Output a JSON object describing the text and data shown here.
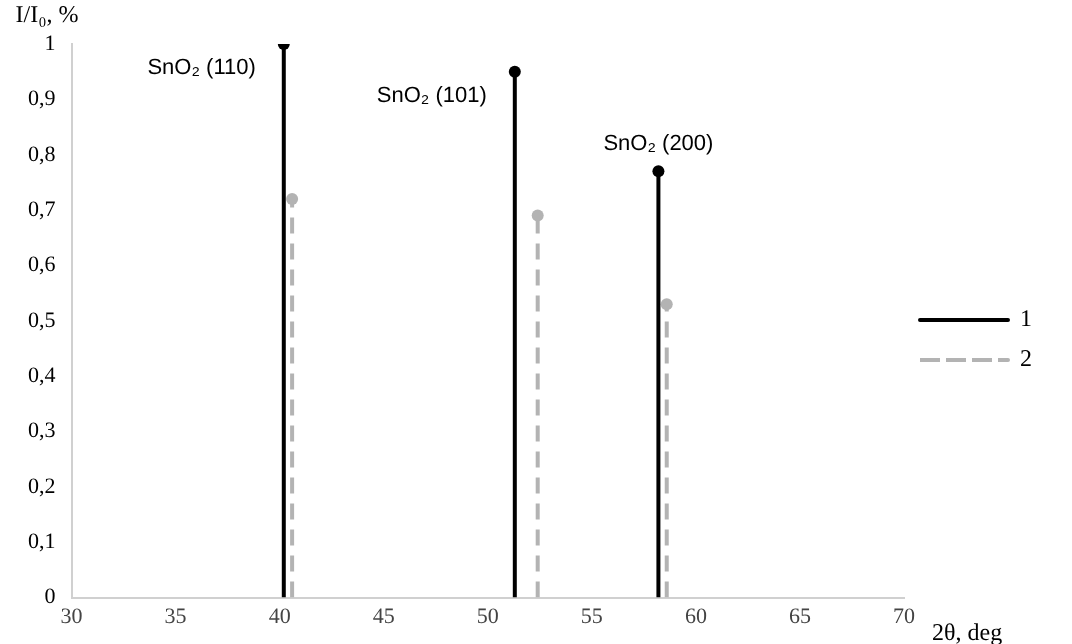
{
  "chart_data": {
    "type": "lollipop",
    "xlabel": "2θ, deg",
    "ylabel": "I/I₀, %",
    "xlim": [
      30,
      70
    ],
    "xticks": [
      30,
      35,
      40,
      45,
      50,
      55,
      60,
      65,
      70
    ],
    "ylim": [
      0,
      1
    ],
    "yticks": [
      0,
      {
        "value": 0.1,
        "label": "0,1"
      },
      {
        "value": 0.2,
        "label": "0,2"
      },
      {
        "value": 0.3,
        "label": "0,3"
      },
      {
        "value": 0.4,
        "label": "0,4"
      },
      {
        "value": 0.5,
        "label": "0,5"
      },
      {
        "value": 0.6,
        "label": "0,6"
      },
      {
        "value": 0.7,
        "label": "0,7"
      },
      {
        "value": 0.8,
        "label": "0,8"
      },
      {
        "value": 0.9,
        "label": "0,9"
      },
      1
    ],
    "series": [
      {
        "name": "1",
        "color": "#000000",
        "line_style": "solid",
        "x": [
          40.2,
          51.3,
          58.2
        ],
        "values": [
          1,
          0.95,
          0.77
        ]
      },
      {
        "name": "2",
        "color": "#b3b3b3",
        "line_style": "dashed",
        "x": [
          40.6,
          52.4,
          58.6
        ],
        "values": [
          0.72,
          0.69,
          0.53
        ]
      }
    ],
    "annotations": [
      {
        "text": "SnO₂ (110)",
        "x": 40.2,
        "y": 1
      },
      {
        "text": "SnO₂ (101)",
        "x": 51.3,
        "y": 0.95
      },
      {
        "text": "SnO₂ (200)",
        "x": 58.2,
        "y": 0.77
      }
    ],
    "marker": "circle",
    "grid": false,
    "legend": "right"
  }
}
